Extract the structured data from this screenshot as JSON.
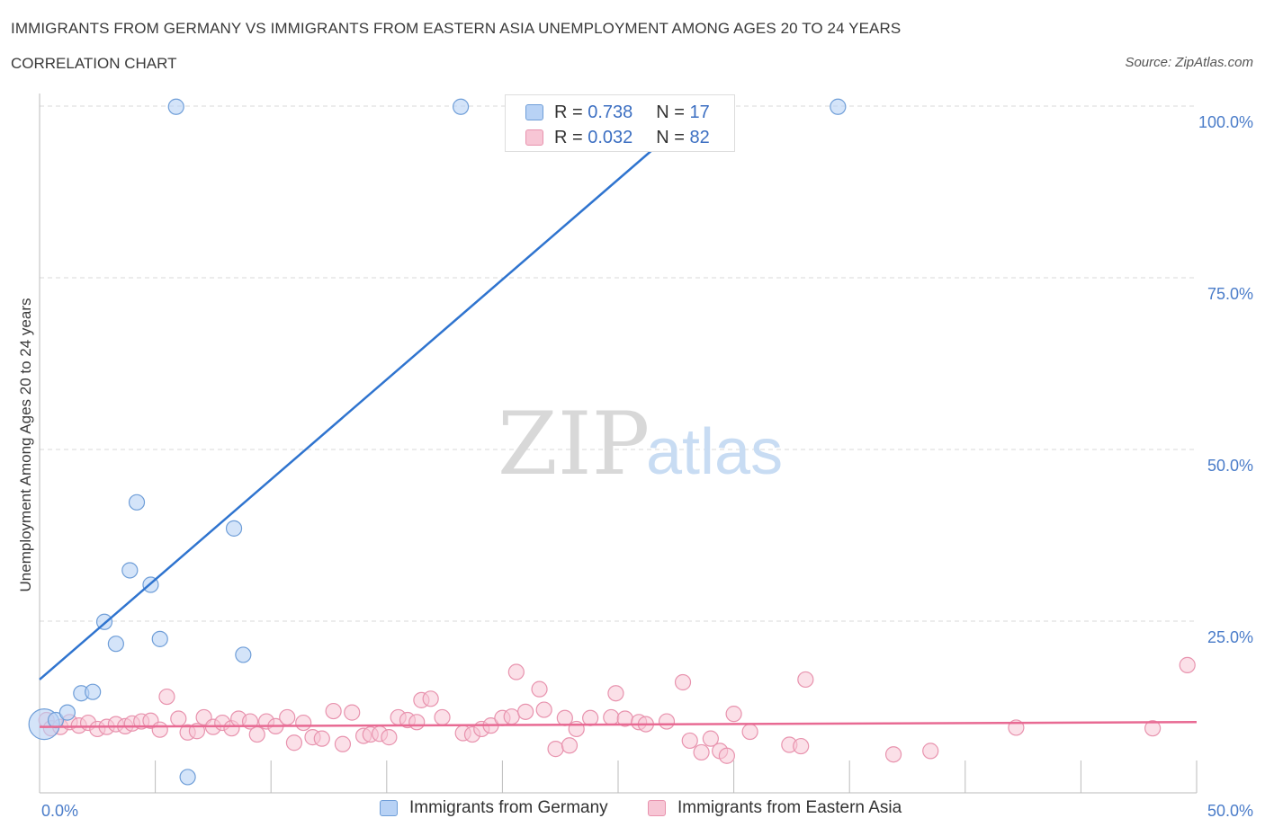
{
  "header": {
    "title": "IMMIGRANTS FROM GERMANY VS IMMIGRANTS FROM EASTERN ASIA UNEMPLOYMENT AMONG AGES 20 TO 24 YEARS",
    "subtitle": "CORRELATION CHART",
    "source": "Source: ZipAtlas.com"
  },
  "watermark": {
    "zip": "ZIP",
    "atlas": "atlas"
  },
  "colors": {
    "germany_fill": "#b8d2f5",
    "germany_stroke": "#6f9ed8",
    "germany_line": "#2f74cf",
    "asia_fill": "#f7c6d5",
    "asia_stroke": "#e893ae",
    "asia_line": "#e86a93",
    "tick_text": "#4a7cc9",
    "grid": "#d9d9d9"
  },
  "legend": {
    "rows": [
      {
        "r_label": "R = ",
        "r_value": "0.738",
        "n_label": "N = ",
        "n_value": "17"
      },
      {
        "r_label": "R = ",
        "r_value": "0.032",
        "n_label": "N = ",
        "n_value": "82"
      }
    ]
  },
  "bottom_legend": {
    "germany": "Immigrants from Germany",
    "asia": "Immigrants from Eastern Asia"
  },
  "chart_data": {
    "type": "scatter",
    "title": "IMMIGRANTS FROM GERMANY VS IMMIGRANTS FROM EASTERN ASIA UNEMPLOYMENT AMONG AGES 20 TO 24 YEARS",
    "xlabel": "",
    "ylabel": "Unemployment Among Ages 20 to 24 years",
    "xlim": [
      0,
      50
    ],
    "ylim": [
      0,
      100
    ],
    "x_tick_labels": [
      {
        "value": 0,
        "label": "0.0%"
      },
      {
        "value": 50,
        "label": "50.0%"
      }
    ],
    "y_tick_labels": [
      {
        "value": 100,
        "label": "100.0%"
      },
      {
        "value": 75,
        "label": "75.0%"
      },
      {
        "value": 50,
        "label": "50.0%"
      },
      {
        "value": 25,
        "label": "25.0%"
      }
    ],
    "x_minor_ticks": [
      5,
      10,
      15,
      20,
      25,
      30,
      35,
      40,
      45,
      50
    ],
    "grid": true,
    "legend_position": "top-center",
    "series": [
      {
        "name": "Immigrants from Germany",
        "R": 0.738,
        "N": 17,
        "trend": {
          "x0": 0.0,
          "y0": 16.5,
          "x1": 28.5,
          "y1": 99.5
        },
        "points": [
          {
            "x": 0.2,
            "y": 10.0,
            "big": true
          },
          {
            "x": 0.7,
            "y": 10.6
          },
          {
            "x": 1.2,
            "y": 11.7
          },
          {
            "x": 1.8,
            "y": 14.5
          },
          {
            "x": 2.3,
            "y": 14.7
          },
          {
            "x": 2.8,
            "y": 24.9
          },
          {
            "x": 3.3,
            "y": 21.7
          },
          {
            "x": 3.9,
            "y": 32.4
          },
          {
            "x": 4.2,
            "y": 42.3
          },
          {
            "x": 4.8,
            "y": 30.3
          },
          {
            "x": 5.2,
            "y": 22.4
          },
          {
            "x": 5.9,
            "y": 99.9
          },
          {
            "x": 6.4,
            "y": 2.3
          },
          {
            "x": 8.4,
            "y": 38.5
          },
          {
            "x": 8.8,
            "y": 20.1
          },
          {
            "x": 18.2,
            "y": 99.9
          },
          {
            "x": 34.5,
            "y": 99.9
          }
        ]
      },
      {
        "name": "Immigrants from Eastern Asia",
        "R": 0.032,
        "N": 82,
        "trend": {
          "x0": 0.0,
          "y0": 9.6,
          "x1": 50.0,
          "y1": 10.3
        },
        "points": [
          {
            "x": 0.3,
            "y": 10.6
          },
          {
            "x": 0.5,
            "y": 9.4
          },
          {
            "x": 0.9,
            "y": 9.6
          },
          {
            "x": 1.3,
            "y": 10.3
          },
          {
            "x": 1.7,
            "y": 9.8
          },
          {
            "x": 2.1,
            "y": 10.2
          },
          {
            "x": 2.5,
            "y": 9.3
          },
          {
            "x": 2.9,
            "y": 9.6
          },
          {
            "x": 3.3,
            "y": 10.0
          },
          {
            "x": 3.7,
            "y": 9.7
          },
          {
            "x": 4.0,
            "y": 10.1
          },
          {
            "x": 4.4,
            "y": 10.4
          },
          {
            "x": 4.8,
            "y": 10.5
          },
          {
            "x": 5.2,
            "y": 9.2
          },
          {
            "x": 5.5,
            "y": 14.0
          },
          {
            "x": 6.0,
            "y": 10.8
          },
          {
            "x": 6.4,
            "y": 8.8
          },
          {
            "x": 6.8,
            "y": 9.0
          },
          {
            "x": 7.1,
            "y": 11.0
          },
          {
            "x": 7.5,
            "y": 9.6
          },
          {
            "x": 7.9,
            "y": 10.2
          },
          {
            "x": 8.3,
            "y": 9.4
          },
          {
            "x": 8.6,
            "y": 10.8
          },
          {
            "x": 9.1,
            "y": 10.4
          },
          {
            "x": 9.4,
            "y": 8.5
          },
          {
            "x": 9.8,
            "y": 10.4
          },
          {
            "x": 10.2,
            "y": 9.7
          },
          {
            "x": 10.7,
            "y": 11.0
          },
          {
            "x": 11.0,
            "y": 7.3
          },
          {
            "x": 11.4,
            "y": 10.2
          },
          {
            "x": 11.8,
            "y": 8.1
          },
          {
            "x": 12.2,
            "y": 7.9
          },
          {
            "x": 12.7,
            "y": 11.9
          },
          {
            "x": 13.1,
            "y": 7.1
          },
          {
            "x": 13.5,
            "y": 11.7
          },
          {
            "x": 14.0,
            "y": 8.3
          },
          {
            "x": 14.3,
            "y": 8.5
          },
          {
            "x": 14.7,
            "y": 8.6
          },
          {
            "x": 15.1,
            "y": 8.1
          },
          {
            "x": 15.5,
            "y": 11.0
          },
          {
            "x": 15.9,
            "y": 10.6
          },
          {
            "x": 16.3,
            "y": 10.3
          },
          {
            "x": 16.5,
            "y": 13.5
          },
          {
            "x": 16.9,
            "y": 13.7
          },
          {
            "x": 17.4,
            "y": 11.0
          },
          {
            "x": 18.3,
            "y": 8.7
          },
          {
            "x": 18.7,
            "y": 8.5
          },
          {
            "x": 19.1,
            "y": 9.3
          },
          {
            "x": 19.5,
            "y": 9.8
          },
          {
            "x": 20.0,
            "y": 10.9
          },
          {
            "x": 20.4,
            "y": 11.1
          },
          {
            "x": 20.6,
            "y": 17.6
          },
          {
            "x": 21.0,
            "y": 11.8
          },
          {
            "x": 21.6,
            "y": 15.1
          },
          {
            "x": 21.8,
            "y": 12.1
          },
          {
            "x": 22.3,
            "y": 6.4
          },
          {
            "x": 22.7,
            "y": 10.9
          },
          {
            "x": 22.9,
            "y": 6.9
          },
          {
            "x": 23.2,
            "y": 9.3
          },
          {
            "x": 23.8,
            "y": 10.9
          },
          {
            "x": 24.7,
            "y": 11.0
          },
          {
            "x": 24.9,
            "y": 14.5
          },
          {
            "x": 25.3,
            "y": 10.8
          },
          {
            "x": 25.9,
            "y": 10.3
          },
          {
            "x": 26.2,
            "y": 10.0
          },
          {
            "x": 27.1,
            "y": 10.4
          },
          {
            "x": 27.8,
            "y": 16.1
          },
          {
            "x": 28.1,
            "y": 7.6
          },
          {
            "x": 28.6,
            "y": 5.9
          },
          {
            "x": 29.0,
            "y": 7.9
          },
          {
            "x": 29.4,
            "y": 6.1
          },
          {
            "x": 29.7,
            "y": 5.4
          },
          {
            "x": 30.0,
            "y": 11.5
          },
          {
            "x": 30.7,
            "y": 8.9
          },
          {
            "x": 32.4,
            "y": 7.0
          },
          {
            "x": 32.9,
            "y": 6.8
          },
          {
            "x": 33.1,
            "y": 16.5
          },
          {
            "x": 36.9,
            "y": 5.6
          },
          {
            "x": 38.5,
            "y": 6.1
          },
          {
            "x": 42.2,
            "y": 9.5
          },
          {
            "x": 48.1,
            "y": 9.4
          },
          {
            "x": 49.6,
            "y": 18.6
          }
        ]
      }
    ]
  }
}
